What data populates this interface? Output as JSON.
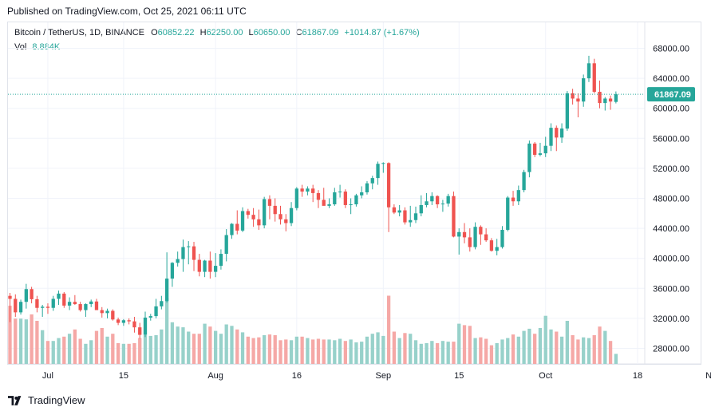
{
  "header": {
    "published": "Published on TradingView.com, Oct 25, 2021 06:11 UTC"
  },
  "legend": {
    "symbol": "Bitcoin / TetherUS, 1D, BINANCE",
    "o_label": "O",
    "o_value": "60852.22",
    "h_label": "H",
    "h_value": "62250.00",
    "l_label": "L",
    "l_value": "60650.00",
    "c_label": "C",
    "c_value": "61867.09",
    "change": "+1014.87 (+1.67%)",
    "vol_label": "Vol",
    "vol_value": "8.884K"
  },
  "footer": {
    "brand": "TradingView"
  },
  "colors": {
    "up": "#26a69a",
    "down": "#ef5350",
    "up_vol": "#97d1ca",
    "down_vol": "#f5a8a6",
    "last_price_bg": "#26a69a",
    "grid": "#f0f3fa",
    "axis_text": "#131722"
  },
  "chart_data": {
    "type": "candlestick",
    "title": "Bitcoin / TetherUS, 1D, BINANCE",
    "y_ticks": [
      "68000.00",
      "64000.00",
      "60000.00",
      "56000.00",
      "52000.00",
      "48000.00",
      "44000.00",
      "40000.00",
      "36000.00",
      "32000.00",
      "28000.00"
    ],
    "x_ticks": [
      "Jul",
      "15",
      "Aug",
      "16",
      "Sep",
      "15",
      "Oct",
      "18",
      "Nov"
    ],
    "ylim": [
      25500,
      70200
    ],
    "last_price": "61867.09",
    "x_start": "2021-06-24",
    "candles": [
      [
        35000,
        35400,
        31500,
        34600
      ],
      [
        34600,
        35200,
        32200,
        32800
      ],
      [
        32800,
        34500,
        32500,
        34200
      ],
      [
        34200,
        36600,
        33300,
        35900
      ],
      [
        35900,
        36200,
        34000,
        34550
      ],
      [
        34550,
        35000,
        32800,
        33400
      ],
      [
        33400,
        33800,
        32200,
        33550
      ],
      [
        33550,
        34000,
        32600,
        33400
      ],
      [
        33400,
        35000,
        33000,
        34600
      ],
      [
        34600,
        35700,
        33800,
        35300
      ],
      [
        35300,
        35500,
        33400,
        33700
      ],
      [
        33700,
        34800,
        33100,
        34200
      ],
      [
        34200,
        35100,
        33800,
        33900
      ],
      [
        33900,
        34200,
        32900,
        33100
      ],
      [
        33100,
        34000,
        32200,
        33900
      ],
      [
        33900,
        34500,
        33500,
        34250
      ],
      [
        34250,
        34600,
        33200,
        33100
      ],
      [
        33100,
        33500,
        32100,
        32700
      ],
      [
        32700,
        33300,
        32000,
        33000
      ],
      [
        33000,
        33200,
        31700,
        31850
      ],
      [
        31850,
        32100,
        31100,
        31400
      ],
      [
        31400,
        31900,
        31000,
        31750
      ],
      [
        31750,
        32000,
        31200,
        31600
      ],
      [
        31600,
        32200,
        30100,
        30800
      ],
      [
        30800,
        31400,
        29300,
        29800
      ],
      [
        29800,
        32900,
        29500,
        32100
      ],
      [
        32100,
        32600,
        31700,
        32300
      ],
      [
        32300,
        34600,
        32000,
        33600
      ],
      [
        33600,
        35000,
        33200,
        34300
      ],
      [
        34300,
        40800,
        34100,
        37300
      ],
      [
        37300,
        39500,
        36200,
        39400
      ],
      [
        39400,
        40900,
        38900,
        39900
      ],
      [
        39900,
        42500,
        38200,
        41500
      ],
      [
        41500,
        42300,
        39200,
        41600
      ],
      [
        41600,
        42200,
        38300,
        39800
      ],
      [
        39800,
        40600,
        37600,
        38200
      ],
      [
        38200,
        39800,
        37500,
        39700
      ],
      [
        39700,
        40900,
        37300,
        38200
      ],
      [
        38200,
        40700,
        37500,
        39000
      ],
      [
        39000,
        41200,
        38500,
        40600
      ],
      [
        40600,
        43900,
        39600,
        43100
      ],
      [
        43100,
        44700,
        42600,
        44600
      ],
      [
        44600,
        46400,
        43200,
        43700
      ],
      [
        43700,
        46800,
        43500,
        46300
      ],
      [
        46300,
        46600,
        45300,
        45800
      ],
      [
        45800,
        46700,
        44200,
        45200
      ],
      [
        45200,
        46500,
        43800,
        44400
      ],
      [
        44400,
        48200,
        44000,
        47900
      ],
      [
        47900,
        48400,
        45200,
        47000
      ],
      [
        47000,
        48000,
        44900,
        45900
      ],
      [
        45900,
        47000,
        44500,
        45200
      ],
      [
        45200,
        45900,
        43600,
        44700
      ],
      [
        44700,
        47500,
        44300,
        46700
      ],
      [
        46700,
        49500,
        46400,
        49300
      ],
      [
        49300,
        49800,
        48200,
        48900
      ],
      [
        48900,
        49600,
        48400,
        49300
      ],
      [
        49300,
        49800,
        47500,
        48700
      ],
      [
        48700,
        49100,
        46700,
        47800
      ],
      [
        47800,
        49400,
        47100,
        47000
      ],
      [
        47000,
        48000,
        46700,
        47200
      ],
      [
        47200,
        49400,
        47000,
        48800
      ],
      [
        48800,
        49800,
        48100,
        48900
      ],
      [
        48900,
        49200,
        46700,
        47100
      ],
      [
        47100,
        48000,
        45900,
        47200
      ],
      [
        47200,
        48600,
        46900,
        48400
      ],
      [
        48400,
        49600,
        48000,
        48800
      ],
      [
        48800,
        50300,
        48500,
        50000
      ],
      [
        50000,
        51000,
        49200,
        50700
      ],
      [
        50700,
        52900,
        49800,
        52600
      ],
      [
        52600,
        52800,
        51400,
        52700
      ],
      [
        52700,
        52800,
        43500,
        46800
      ],
      [
        46800,
        47200,
        45900,
        46100
      ],
      [
        46100,
        47100,
        45600,
        46400
      ],
      [
        46400,
        46800,
        44500,
        44800
      ],
      [
        44800,
        47000,
        44200,
        45100
      ],
      [
        45100,
        46900,
        44700,
        46000
      ],
      [
        46000,
        48400,
        45600,
        47100
      ],
      [
        47100,
        48700,
        46800,
        47600
      ],
      [
        47600,
        48800,
        47100,
        48300
      ],
      [
        48300,
        48400,
        46700,
        47200
      ],
      [
        47200,
        47800,
        46200,
        47300
      ],
      [
        47300,
        48600,
        46900,
        48300
      ],
      [
        48300,
        48900,
        42800,
        42900
      ],
      [
        42900,
        44000,
        40500,
        43500
      ],
      [
        43500,
        44700,
        42000,
        42800
      ],
      [
        42800,
        44000,
        40900,
        41500
      ],
      [
        41500,
        44800,
        41200,
        44200
      ],
      [
        44200,
        44400,
        41800,
        43200
      ],
      [
        43200,
        44000,
        42200,
        42400
      ],
      [
        42400,
        42700,
        40900,
        41000
      ],
      [
        41000,
        42600,
        40400,
        41500
      ],
      [
        41500,
        44300,
        41300,
        43800
      ],
      [
        43800,
        48300,
        43600,
        48100
      ],
      [
        48100,
        49000,
        47000,
        47600
      ],
      [
        47600,
        49700,
        47100,
        49100
      ],
      [
        49100,
        51800,
        48800,
        51500
      ],
      [
        51500,
        55700,
        50800,
        55300
      ],
      [
        55300,
        55500,
        53500,
        53800
      ],
      [
        53800,
        55400,
        53600,
        54000
      ],
      [
        54000,
        56200,
        53500,
        55000
      ],
      [
        55000,
        58000,
        54300,
        57400
      ],
      [
        57400,
        57700,
        54300,
        56100
      ],
      [
        56100,
        58000,
        55400,
        57300
      ],
      [
        57300,
        62300,
        57000,
        62000
      ],
      [
        62000,
        62600,
        60500,
        61300
      ],
      [
        61300,
        62000,
        58800,
        60900
      ],
      [
        60900,
        64500,
        60200,
        64000
      ],
      [
        64000,
        67000,
        63500,
        66000
      ],
      [
        66000,
        66600,
        62000,
        62200
      ],
      [
        62200,
        63700,
        60000,
        60700
      ],
      [
        60700,
        61500,
        59700,
        61300
      ],
      [
        61300,
        61700,
        59800,
        60900
      ],
      [
        60852.22,
        62250,
        60650,
        61867.09
      ]
    ],
    "volumes": [
      81,
      63,
      63,
      62,
      69,
      60,
      47,
      32,
      32,
      36,
      38,
      42,
      48,
      35,
      28,
      33,
      46,
      50,
      38,
      42,
      29,
      28,
      28,
      29,
      36,
      40,
      39,
      40,
      48,
      92,
      58,
      52,
      51,
      45,
      42,
      42,
      56,
      52,
      46,
      42,
      55,
      53,
      48,
      44,
      38,
      36,
      37,
      40,
      41,
      40,
      33,
      34,
      33,
      38,
      38,
      36,
      34,
      35,
      34,
      34,
      33,
      35,
      32,
      34,
      30,
      31,
      38,
      42,
      44,
      39,
      95,
      45,
      36,
      43,
      42,
      33,
      28,
      29,
      32,
      29,
      32,
      31,
      31,
      56,
      54,
      53,
      36,
      37,
      35,
      26,
      29,
      34,
      36,
      41,
      38,
      46,
      49,
      42,
      50,
      67,
      48,
      45,
      38,
      60,
      40,
      34,
      37,
      36,
      40,
      52,
      46,
      32,
      14
    ]
  }
}
